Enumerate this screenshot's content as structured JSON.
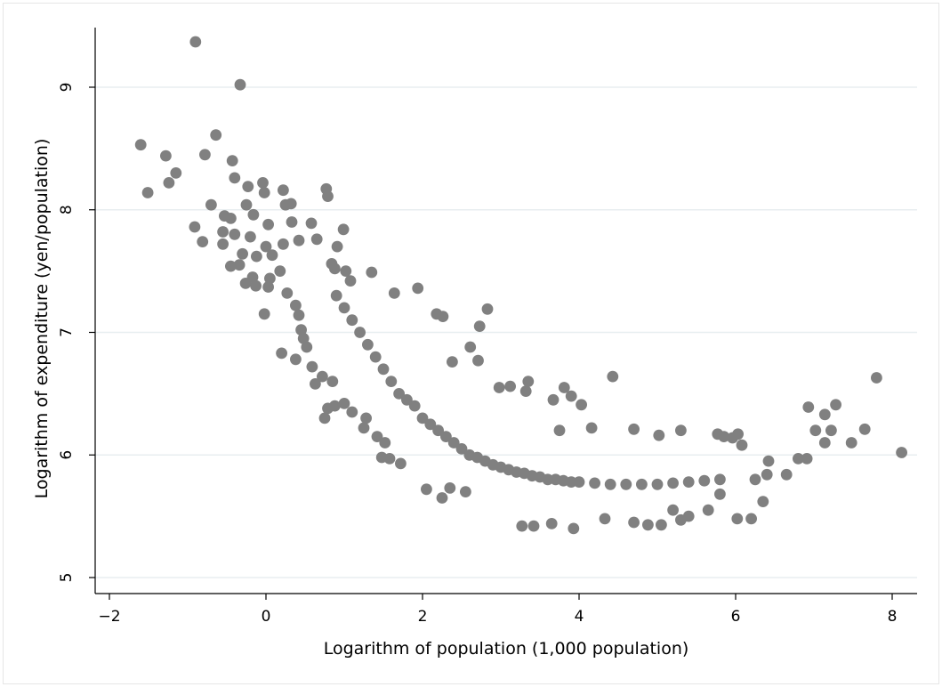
{
  "chart_data": {
    "type": "scatter",
    "title": "",
    "xlabel": "Logarithm of population (1,000 population)",
    "ylabel": "Logarithm of expenditure (yen/population)",
    "xlim": [
      -2.2,
      8.3
    ],
    "ylim": [
      4.9,
      9.5
    ],
    "xticks": [
      -2,
      0,
      2,
      4,
      6,
      8
    ],
    "yticks": [
      5,
      6,
      7,
      8,
      9
    ],
    "xtick_labels": [
      "−2",
      "0",
      "2",
      "4",
      "6",
      "8"
    ],
    "ytick_labels": [
      "5",
      "6",
      "7",
      "8",
      "9"
    ],
    "grid": "horizontal",
    "legend": "none",
    "marker_color": "#808080",
    "grid_color": "#e8eef0",
    "points": [
      [
        -0.9,
        9.37
      ],
      [
        -0.33,
        9.02
      ],
      [
        -1.6,
        8.53
      ],
      [
        -1.28,
        8.44
      ],
      [
        -0.64,
        8.61
      ],
      [
        -0.78,
        8.45
      ],
      [
        -1.15,
        8.3
      ],
      [
        -1.24,
        8.22
      ],
      [
        -1.51,
        8.14
      ],
      [
        -0.43,
        8.4
      ],
      [
        -0.4,
        8.26
      ],
      [
        -0.23,
        8.19
      ],
      [
        -0.04,
        8.22
      ],
      [
        -0.02,
        8.14
      ],
      [
        0.22,
        8.16
      ],
      [
        0.32,
        8.05
      ],
      [
        0.25,
        8.04
      ],
      [
        0.77,
        8.17
      ],
      [
        0.79,
        8.11
      ],
      [
        -0.7,
        8.04
      ],
      [
        -0.25,
        8.04
      ],
      [
        -0.91,
        7.86
      ],
      [
        -0.53,
        7.95
      ],
      [
        -0.45,
        7.93
      ],
      [
        -0.16,
        7.96
      ],
      [
        0.03,
        7.88
      ],
      [
        0.33,
        7.9
      ],
      [
        0.58,
        7.89
      ],
      [
        0.99,
        7.84
      ],
      [
        -0.55,
        7.82
      ],
      [
        -0.81,
        7.74
      ],
      [
        -0.55,
        7.72
      ],
      [
        -0.4,
        7.8
      ],
      [
        -0.2,
        7.78
      ],
      [
        0.0,
        7.7
      ],
      [
        0.22,
        7.72
      ],
      [
        0.42,
        7.75
      ],
      [
        0.65,
        7.76
      ],
      [
        0.91,
        7.7
      ],
      [
        -0.3,
        7.64
      ],
      [
        -0.12,
        7.62
      ],
      [
        0.08,
        7.63
      ],
      [
        -0.45,
        7.54
      ],
      [
        -0.34,
        7.55
      ],
      [
        -0.17,
        7.45
      ],
      [
        0.05,
        7.44
      ],
      [
        0.18,
        7.5
      ],
      [
        -0.26,
        7.4
      ],
      [
        -0.13,
        7.38
      ],
      [
        0.03,
        7.37
      ],
      [
        -0.02,
        7.15
      ],
      [
        0.84,
        7.56
      ],
      [
        0.88,
        7.52
      ],
      [
        1.02,
        7.5
      ],
      [
        1.08,
        7.42
      ],
      [
        1.35,
        7.49
      ],
      [
        1.94,
        7.36
      ],
      [
        1.64,
        7.32
      ],
      [
        0.27,
        7.32
      ],
      [
        0.38,
        7.22
      ],
      [
        0.42,
        7.14
      ],
      [
        0.45,
        7.02
      ],
      [
        0.48,
        6.95
      ],
      [
        0.52,
        6.88
      ],
      [
        0.2,
        6.83
      ],
      [
        0.38,
        6.78
      ],
      [
        0.59,
        6.72
      ],
      [
        0.63,
        6.58
      ],
      [
        0.72,
        6.64
      ],
      [
        0.85,
        6.6
      ],
      [
        0.79,
        6.38
      ],
      [
        0.88,
        6.4
      ],
      [
        0.75,
        6.3
      ],
      [
        1.0,
        6.42
      ],
      [
        1.1,
        6.35
      ],
      [
        1.28,
        6.3
      ],
      [
        1.25,
        6.22
      ],
      [
        1.42,
        6.15
      ],
      [
        1.52,
        6.1
      ],
      [
        1.48,
        5.98
      ],
      [
        1.58,
        5.97
      ],
      [
        1.72,
        5.93
      ],
      [
        2.18,
        7.15
      ],
      [
        2.26,
        7.13
      ],
      [
        2.83,
        7.19
      ],
      [
        2.73,
        7.05
      ],
      [
        2.38,
        6.76
      ],
      [
        2.61,
        6.88
      ],
      [
        2.71,
        6.77
      ],
      [
        2.98,
        6.55
      ],
      [
        3.12,
        6.56
      ],
      [
        3.35,
        6.6
      ],
      [
        3.32,
        6.52
      ],
      [
        3.81,
        6.55
      ],
      [
        3.9,
        6.48
      ],
      [
        4.03,
        6.41
      ],
      [
        4.43,
        6.64
      ],
      [
        3.67,
        6.45
      ],
      [
        3.75,
        6.2
      ],
      [
        4.16,
        6.22
      ],
      [
        4.7,
        6.21
      ],
      [
        5.02,
        6.16
      ],
      [
        5.3,
        6.2
      ],
      [
        5.77,
        6.17
      ],
      [
        5.96,
        6.14
      ],
      [
        5.85,
        6.15
      ],
      [
        6.03,
        6.17
      ],
      [
        6.08,
        6.08
      ],
      [
        6.93,
        6.39
      ],
      [
        7.14,
        6.33
      ],
      [
        7.28,
        6.41
      ],
      [
        7.02,
        6.2
      ],
      [
        7.22,
        6.2
      ],
      [
        7.48,
        6.1
      ],
      [
        7.14,
        6.1
      ],
      [
        7.65,
        6.21
      ],
      [
        7.8,
        6.63
      ],
      [
        8.12,
        6.02
      ],
      [
        6.91,
        5.97
      ],
      [
        6.8,
        5.97
      ],
      [
        6.65,
        5.84
      ],
      [
        6.42,
        5.95
      ],
      [
        6.25,
        5.8
      ],
      [
        6.35,
        5.62
      ],
      [
        6.02,
        5.48
      ],
      [
        6.2,
        5.48
      ],
      [
        6.4,
        5.84
      ],
      [
        5.8,
        5.68
      ],
      [
        5.65,
        5.55
      ],
      [
        5.4,
        5.5
      ],
      [
        5.3,
        5.47
      ],
      [
        5.2,
        5.55
      ],
      [
        5.05,
        5.43
      ],
      [
        4.88,
        5.43
      ],
      [
        4.7,
        5.45
      ],
      [
        4.33,
        5.48
      ],
      [
        3.93,
        5.4
      ],
      [
        3.65,
        5.44
      ],
      [
        3.42,
        5.42
      ],
      [
        3.27,
        5.42
      ],
      [
        2.25,
        5.65
      ],
      [
        2.35,
        5.73
      ],
      [
        2.05,
        5.72
      ],
      [
        2.55,
        5.7
      ],
      [
        0.9,
        7.3
      ],
      [
        1.0,
        7.2
      ],
      [
        1.1,
        7.1
      ],
      [
        1.2,
        7.0
      ],
      [
        1.3,
        6.9
      ],
      [
        1.4,
        6.8
      ],
      [
        1.5,
        6.7
      ],
      [
        1.6,
        6.6
      ],
      [
        1.7,
        6.5
      ],
      [
        1.8,
        6.45
      ],
      [
        1.9,
        6.4
      ],
      [
        2.0,
        6.3
      ],
      [
        2.1,
        6.25
      ],
      [
        2.2,
        6.2
      ],
      [
        2.3,
        6.15
      ],
      [
        2.4,
        6.1
      ],
      [
        2.5,
        6.05
      ],
      [
        2.6,
        6.0
      ],
      [
        2.7,
        5.98
      ],
      [
        2.8,
        5.95
      ],
      [
        2.9,
        5.92
      ],
      [
        3.0,
        5.9
      ],
      [
        3.1,
        5.88
      ],
      [
        3.2,
        5.86
      ],
      [
        3.3,
        5.85
      ],
      [
        3.4,
        5.83
      ],
      [
        3.5,
        5.82
      ],
      [
        3.6,
        5.8
      ],
      [
        3.7,
        5.8
      ],
      [
        3.8,
        5.79
      ],
      [
        3.9,
        5.78
      ],
      [
        4.0,
        5.78
      ],
      [
        4.2,
        5.77
      ],
      [
        4.4,
        5.76
      ],
      [
        4.6,
        5.76
      ],
      [
        4.8,
        5.76
      ],
      [
        5.0,
        5.76
      ],
      [
        5.2,
        5.77
      ],
      [
        5.4,
        5.78
      ],
      [
        5.6,
        5.79
      ],
      [
        5.8,
        5.8
      ]
    ]
  }
}
